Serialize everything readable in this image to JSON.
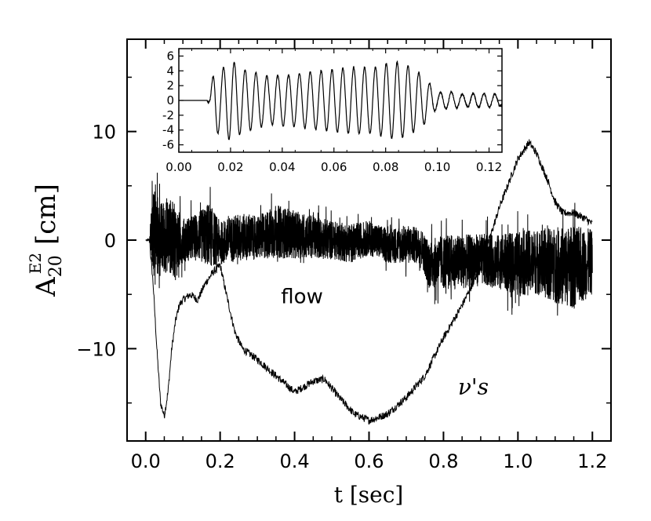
{
  "chart_data": [
    {
      "type": "line",
      "title": "",
      "xlabel": "t [sec]",
      "ylabel_main": "A",
      "ylabel_sup": "E2",
      "ylabel_sub": "20",
      "ylabel_unit": "[cm]",
      "xlim": [
        -0.05,
        1.25
      ],
      "ylim": [
        -18.5,
        18.5
      ],
      "xticks": [
        0.0,
        0.2,
        0.4,
        0.6,
        0.8,
        1.0,
        1.2
      ],
      "xtick_labels": [
        "0.0",
        "0.2",
        "0.4",
        "0.6",
        "0.8",
        "1.0",
        "1.2"
      ],
      "yticks": [
        -10,
        0,
        10
      ],
      "ytick_labels": [
        "−10",
        "0",
        "10"
      ],
      "grid": false,
      "annotations": [
        {
          "text": "flow",
          "x": 0.42,
          "y": -5.8
        },
        {
          "text": "ν's",
          "x": 0.88,
          "y": -14.2
        }
      ],
      "series": [
        {
          "label": "flow",
          "style": "noisy",
          "x": [
            0.0,
            0.01,
            0.02,
            0.04,
            0.06,
            0.08,
            0.1,
            0.14,
            0.17,
            0.2,
            0.25,
            0.3,
            0.35,
            0.4,
            0.45,
            0.5,
            0.55,
            0.6,
            0.65,
            0.7,
            0.74,
            0.76,
            0.8,
            0.85,
            0.9,
            0.95,
            1.0,
            1.05,
            1.1,
            1.15,
            1.2
          ],
          "y": [
            0.0,
            0.0,
            0.8,
            0.0,
            0.6,
            -0.2,
            0.0,
            0.3,
            0.5,
            -0.3,
            0.3,
            0.2,
            0.8,
            0.5,
            0.3,
            0.0,
            -0.3,
            0.2,
            -0.5,
            -0.4,
            -0.5,
            -2.2,
            -2.0,
            -2.0,
            -1.8,
            -2.0,
            -2.2,
            -2.0,
            -2.3,
            -2.5,
            -2.0
          ],
          "amplitude": [
            0.0,
            0.2,
            4.5,
            3.5,
            3.5,
            3.5,
            2.0,
            2.2,
            3.0,
            2.0,
            2.2,
            2.0,
            2.5,
            2.2,
            2.0,
            1.8,
            1.8,
            1.6,
            1.6,
            1.8,
            1.6,
            2.2,
            2.5,
            2.5,
            2.4,
            2.5,
            3.0,
            3.0,
            3.5,
            3.8,
            3.0
          ]
        },
        {
          "label": "ν's",
          "style": "smooth",
          "x": [
            0.0,
            0.01,
            0.02,
            0.03,
            0.04,
            0.05,
            0.06,
            0.07,
            0.08,
            0.09,
            0.1,
            0.12,
            0.14,
            0.16,
            0.18,
            0.2,
            0.22,
            0.24,
            0.26,
            0.3,
            0.35,
            0.4,
            0.45,
            0.48,
            0.52,
            0.56,
            0.6,
            0.62,
            0.65,
            0.7,
            0.75,
            0.8,
            0.85,
            0.9,
            0.95,
            1.0,
            1.03,
            1.05,
            1.08,
            1.1,
            1.12,
            1.15,
            1.18,
            1.2
          ],
          "y": [
            0.0,
            0.0,
            -4.0,
            -10.0,
            -15.0,
            -16.2,
            -14.0,
            -10.0,
            -7.5,
            -6.0,
            -5.5,
            -5.0,
            -5.5,
            -4.0,
            -3.0,
            -2.3,
            -5.5,
            -8.5,
            -10.0,
            -11.0,
            -12.5,
            -14.0,
            -13.0,
            -12.8,
            -14.5,
            -16.0,
            -16.6,
            -16.4,
            -16.0,
            -14.5,
            -12.5,
            -9.0,
            -6.0,
            -2.5,
            3.0,
            7.5,
            9.0,
            8.0,
            5.5,
            3.5,
            2.5,
            2.5,
            2.0,
            1.5
          ]
        }
      ]
    },
    {
      "type": "line",
      "title": "",
      "inset": true,
      "xlim": [
        0.0,
        0.125
      ],
      "ylim": [
        -7,
        7
      ],
      "xticks": [
        0.0,
        0.02,
        0.04,
        0.06,
        0.08,
        0.1,
        0.12
      ],
      "xtick_labels": [
        "0.00",
        "0.02",
        "0.04",
        "0.06",
        "0.08",
        "0.10",
        "0.12"
      ],
      "yticks": [
        -6,
        -4,
        -2,
        0,
        2,
        4,
        6
      ],
      "ytick_labels": [
        "-6",
        "-4",
        "-2",
        "0",
        "2",
        "4",
        "6"
      ],
      "grid": false,
      "series": [
        {
          "style": "oscillation",
          "period": 0.0042,
          "env_x": [
            0.0,
            0.011,
            0.012,
            0.014,
            0.016,
            0.02,
            0.025,
            0.03,
            0.035,
            0.04,
            0.045,
            0.05,
            0.055,
            0.06,
            0.065,
            0.07,
            0.075,
            0.08,
            0.085,
            0.09,
            0.095,
            0.1,
            0.105,
            0.11,
            0.115,
            0.12,
            0.125
          ],
          "env_y": [
            0.0,
            0.0,
            0.8,
            5.0,
            4.0,
            5.5,
            4.2,
            3.8,
            3.2,
            3.5,
            3.5,
            3.8,
            4.0,
            4.2,
            4.4,
            4.5,
            4.4,
            5.0,
            5.2,
            4.5,
            3.2,
            1.0,
            1.2,
            0.8,
            1.0,
            0.9,
            0.8
          ],
          "offset": [
            0.0,
            0.0,
            0.0,
            0.0,
            0.0,
            0.0,
            0.0,
            0.0,
            0.0,
            0.0,
            0.0,
            0.0,
            0.0,
            0.0,
            0.0,
            0.0,
            0.0,
            0.0,
            0.0,
            0.0,
            0.0,
            0.0,
            0.0,
            0.0,
            0.0,
            0.0,
            0.0
          ]
        }
      ]
    }
  ]
}
